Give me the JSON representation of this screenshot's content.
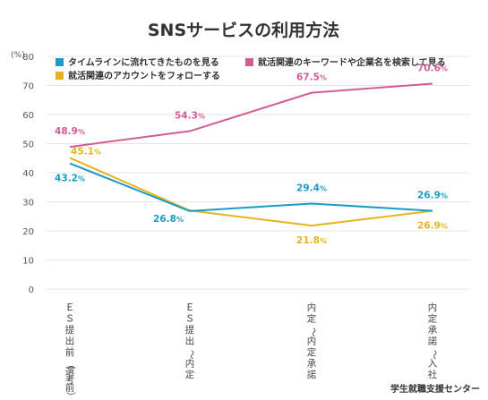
{
  "chart_data": {
    "type": "line",
    "title": "SNSサービスの利用方法",
    "ylabel": "(%)",
    "ylim": [
      0,
      80
    ],
    "yticks": [
      0,
      10,
      20,
      30,
      40,
      50,
      60,
      70,
      80
    ],
    "grid": true,
    "legend_position": "top",
    "categories": [
      "ＥＳ提出前（選考前）",
      "ＥＳ提出～内定",
      "内定～内定承諾",
      "内定承諾～入社"
    ],
    "series": [
      {
        "name": "タイムラインに流れてきたものを見る",
        "color": "#1a9bc7",
        "values": [
          43.2,
          26.8,
          29.4,
          26.9
        ],
        "labels": [
          "43.2%",
          "26.8%",
          "29.4%",
          "26.9%"
        ]
      },
      {
        "name": "就活関連のキーワードや企業名を検索して見る",
        "color": "#d45c96",
        "values": [
          48.9,
          54.3,
          67.5,
          70.6
        ],
        "labels": [
          "48.9%",
          "54.3%",
          "67.5%",
          "70.6%"
        ]
      },
      {
        "name": "就活関連のアカウントをフォローする",
        "color": "#e6b31e",
        "values": [
          45.1,
          27.0,
          21.8,
          26.9
        ],
        "labels": [
          "45.1%",
          "",
          "21.8%",
          "26.9%"
        ]
      }
    ]
  },
  "credit": "学生就職支援センター"
}
